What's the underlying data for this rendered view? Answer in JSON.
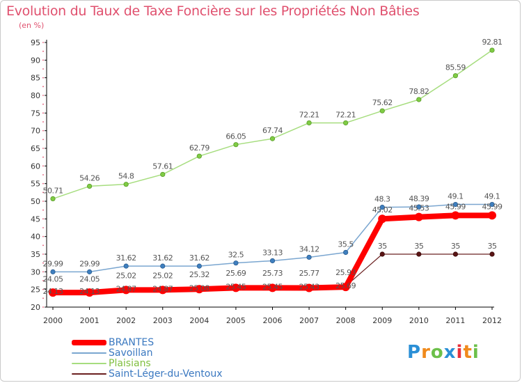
{
  "chart_data": {
    "type": "line",
    "title": "Evolution du Taux de Taxe Foncière sur les Propriétés Non Bâties",
    "ylabel": "(en %)",
    "xlabel": "",
    "x": [
      "2000",
      "2001",
      "2002",
      "2003",
      "2004",
      "2005",
      "2006",
      "2007",
      "2008",
      "2009",
      "2010",
      "2011",
      "2012"
    ],
    "ylim": [
      20,
      95
    ],
    "yticks": [
      20,
      25,
      30,
      35,
      40,
      45,
      50,
      55,
      60,
      65,
      70,
      75,
      80,
      85,
      90,
      95
    ],
    "grid": false,
    "legend_position": "bottom-left",
    "series": [
      {
        "name": "BRANTES",
        "color": "#ff0000",
        "values": [
          24.13,
          24.13,
          24.87,
          24.87,
          25.08,
          25.45,
          25.45,
          25.43,
          25.69,
          45.02,
          45.53,
          45.99,
          45.99
        ],
        "labels": [
          "24.13",
          "24.13",
          "24.87",
          "24.87",
          "25.08",
          "25.45",
          "25.45",
          "25.43",
          "25.69",
          "45.02",
          "45.53",
          "45.99",
          "45.99"
        ]
      },
      {
        "name": "Savoillan",
        "color": "#6699cc",
        "values": [
          29.99,
          29.99,
          31.62,
          31.62,
          31.62,
          32.5,
          33.13,
          34.12,
          35.5,
          48.3,
          48.39,
          49.1,
          49.1
        ],
        "labels": [
          "29.99",
          "29.99",
          "31.62",
          "31.62",
          "31.62",
          "32.5",
          "33.13",
          "34.12",
          "35.5",
          "48.3",
          "48.39",
          "49.1",
          "49.1"
        ]
      },
      {
        "name": "Plaisians",
        "color": "#99dd66",
        "values": [
          50.71,
          54.26,
          54.8,
          57.61,
          62.79,
          66.05,
          67.74,
          72.21,
          72.21,
          75.62,
          78.82,
          85.59,
          92.81
        ],
        "labels": [
          "50.71",
          "54.26",
          "54.8",
          "57.61",
          "62.79",
          "66.05",
          "67.74",
          "72.21",
          "72.21",
          "75.62",
          "78.82",
          "85.59",
          "92.81"
        ]
      },
      {
        "name": "Saint-Léger-du-Ventoux",
        "color": "#772222",
        "values": [
          24.05,
          24.05,
          25.02,
          25.02,
          25.32,
          25.69,
          25.73,
          25.77,
          25.93,
          35,
          35,
          35,
          35
        ],
        "labels": [
          "24.05",
          "24.05",
          "25.02",
          "25.02",
          "25.32",
          "25.69",
          "25.73",
          "25.77",
          "25.93",
          "35",
          "35",
          "35",
          "35"
        ]
      }
    ]
  },
  "logo": {
    "letters": [
      "P",
      "r",
      "o",
      "x",
      "i",
      "t",
      "i"
    ],
    "colors": [
      "#2a8fd6",
      "#f08a1c",
      "#6cc04a",
      "#2a8fd6",
      "#e8303c",
      "#f08a1c",
      "#6cc04a"
    ]
  }
}
